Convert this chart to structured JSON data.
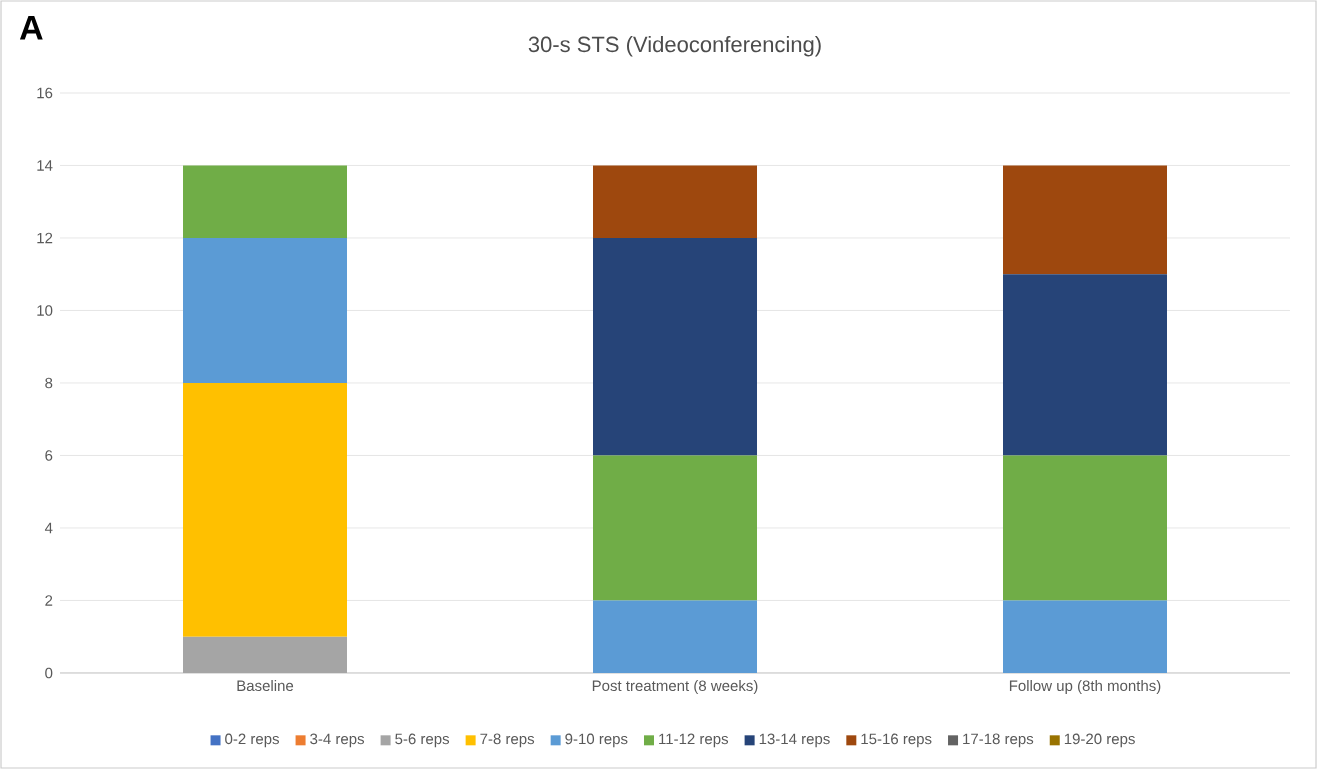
{
  "chart_data": {
    "type": "bar",
    "stacked": true,
    "title": "30-s STS (Videoconferencing)",
    "annotations": [
      "A"
    ],
    "categories": [
      "Baseline",
      "Post treatment (8 weeks)",
      "Follow up (8th months)"
    ],
    "series": [
      {
        "name": "0-2 reps",
        "color": "#4472c4",
        "values": [
          0,
          0,
          0
        ]
      },
      {
        "name": "3-4 reps",
        "color": "#ed7d31",
        "values": [
          0,
          0,
          0
        ]
      },
      {
        "name": "5-6 reps",
        "color": "#a5a5a5",
        "values": [
          1,
          0,
          0
        ]
      },
      {
        "name": "7-8 reps",
        "color": "#ffc000",
        "values": [
          7,
          0,
          0
        ]
      },
      {
        "name": "9-10 reps",
        "color": "#5b9bd5",
        "values": [
          4,
          2,
          2
        ]
      },
      {
        "name": "11-12 reps",
        "color": "#70ad47",
        "values": [
          2,
          4,
          4
        ]
      },
      {
        "name": "13-14 reps",
        "color": "#264478",
        "values": [
          0,
          6,
          5
        ]
      },
      {
        "name": "15-16 reps",
        "color": "#9e480e",
        "values": [
          0,
          2,
          3
        ]
      },
      {
        "name": "17-18 reps",
        "color": "#636363",
        "values": [
          0,
          0,
          0
        ]
      },
      {
        "name": "19-20 reps",
        "color": "#997300",
        "values": [
          0,
          0,
          0
        ]
      }
    ],
    "ylim": [
      0,
      16
    ],
    "yticks": [
      0,
      2,
      4,
      6,
      8,
      10,
      12,
      14,
      16
    ],
    "grid": "y",
    "legend": "bottom"
  }
}
